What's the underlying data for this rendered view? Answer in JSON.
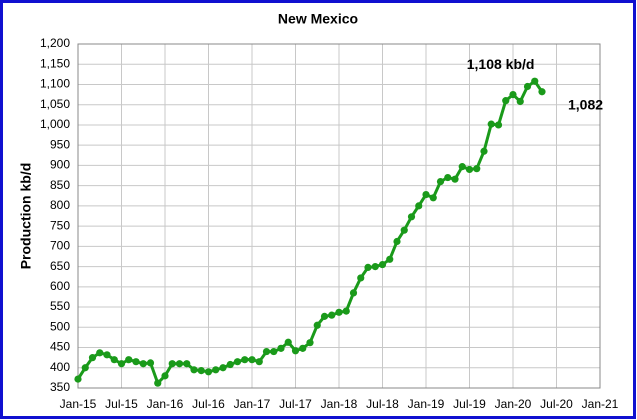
{
  "chart_data": {
    "type": "line",
    "title": "New Mexico",
    "y_label": "Production kb/d",
    "categories": [
      "Jan-15",
      null,
      null,
      null,
      null,
      null,
      "Jul-15",
      null,
      null,
      null,
      null,
      null,
      "Jan-16",
      null,
      null,
      null,
      null,
      null,
      "Jul-16",
      null,
      null,
      null,
      null,
      null,
      "Jan-17",
      null,
      null,
      null,
      null,
      null,
      "Jul-17",
      null,
      null,
      null,
      null,
      null,
      "Jan-18",
      null,
      null,
      null,
      null,
      null,
      "Jul-18",
      null,
      null,
      null,
      null,
      null,
      "Jan-19",
      null,
      null,
      null,
      null,
      null,
      "Jul-19",
      null,
      null,
      null,
      null,
      null,
      "Jan-20",
      null,
      null,
      null,
      null,
      null,
      "Jul-20",
      null,
      null,
      null,
      null,
      null,
      "Jan-21"
    ],
    "series": [
      {
        "color": "#1a9a1a",
        "values": [
          372,
          400,
          425,
          437,
          432,
          420,
          410,
          420,
          415,
          410,
          412,
          362,
          380,
          410,
          410,
          410,
          395,
          393,
          390,
          395,
          400,
          408,
          415,
          420,
          420,
          415,
          440,
          440,
          448,
          463,
          442,
          448,
          462,
          505,
          527,
          530,
          537,
          540,
          585,
          622,
          648,
          650,
          655,
          668,
          712,
          740,
          773,
          800,
          828,
          820,
          860,
          870,
          866,
          897,
          890,
          892,
          935,
          1002,
          1000,
          1060,
          1075,
          1058,
          1095,
          1108,
          1082,
          null,
          null,
          null,
          null,
          null,
          null,
          null,
          null
        ],
        "value_labels": [
          null,
          null,
          null,
          null,
          null,
          null,
          null,
          null,
          null,
          null,
          null,
          null,
          null,
          null,
          null,
          null,
          null,
          null,
          null,
          null,
          null,
          null,
          null,
          null,
          null,
          null,
          null,
          null,
          null,
          null,
          null,
          null,
          null,
          null,
          null,
          null,
          null,
          null,
          null,
          null,
          null,
          null,
          null,
          null,
          null,
          null,
          null,
          null,
          null,
          null,
          null,
          null,
          null,
          null,
          null,
          null,
          null,
          null,
          null,
          null,
          null,
          null,
          null,
          "1,108 kb/d",
          "1,082",
          null,
          null,
          null,
          null,
          null,
          null,
          null,
          null
        ]
      }
    ],
    "ylim": [
      350,
      1200
    ],
    "yticks": [
      350,
      400,
      450,
      500,
      550,
      600,
      650,
      700,
      750,
      800,
      850,
      900,
      950,
      {
        "value": 1000,
        "label": "1,000"
      },
      {
        "value": 1050,
        "label": "1,050"
      },
      {
        "value": 1100,
        "label": "1,100"
      },
      {
        "value": 1150,
        "label": "1,150"
      },
      {
        "value": 1200,
        "label": "1,200"
      }
    ],
    "grid": true
  }
}
